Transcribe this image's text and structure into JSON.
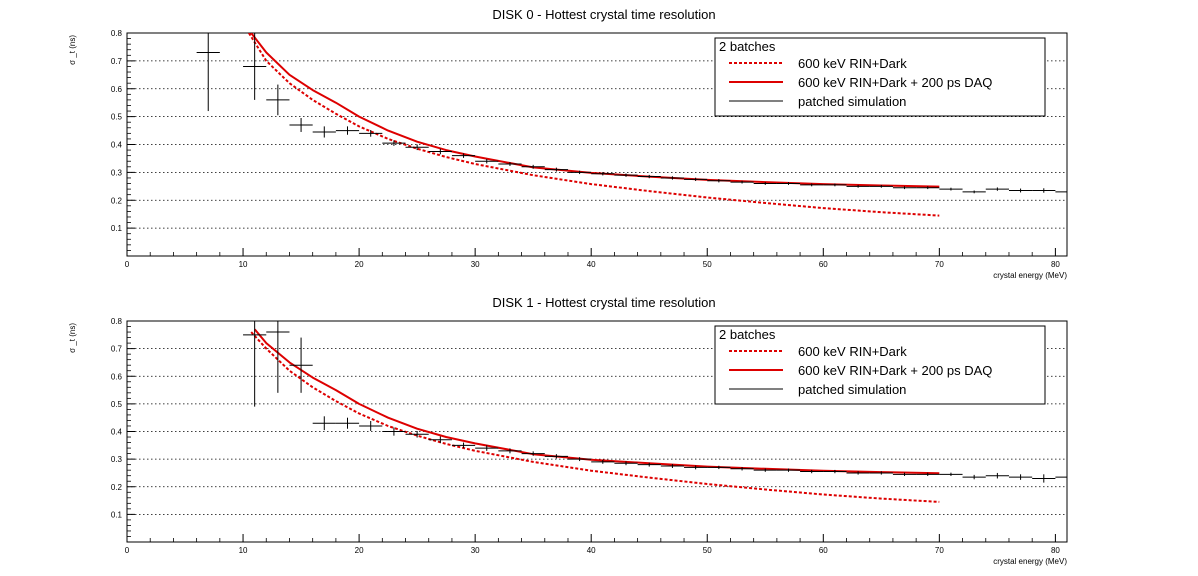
{
  "chart_data": [
    {
      "type": "scatter",
      "title": "DISK 0 - Hottest crystal time resolution",
      "xlabel": "crystal energy (MeV)",
      "ylabel": "σ _t (ns)",
      "xlim": [
        0,
        81
      ],
      "ylim": [
        0,
        0.8
      ],
      "x_ticks": [
        0,
        10,
        20,
        30,
        40,
        50,
        60,
        70,
        80
      ],
      "y_ticks": [
        0.1,
        0.2,
        0.3,
        0.4,
        0.5,
        0.6,
        0.7,
        0.8
      ],
      "grid": "horizontal-dotted",
      "legend_position": "top-right",
      "legend": {
        "header": "2 batches",
        "entries": [
          "600 keV RIN+Dark",
          "600 keV RIN+Dark + 200 ps DAQ",
          "patched simulation"
        ]
      },
      "series": [
        {
          "name": "600 keV RIN+Dark",
          "style": "dashed",
          "color": "#dd0000",
          "x": [
            10.5,
            12,
            14,
            16,
            18,
            20,
            22.5,
            25,
            27.5,
            30,
            35,
            40,
            45,
            50,
            55,
            60,
            65,
            70
          ],
          "y": [
            0.8,
            0.7,
            0.62,
            0.56,
            0.51,
            0.465,
            0.42,
            0.385,
            0.355,
            0.33,
            0.29,
            0.258,
            0.233,
            0.21,
            0.19,
            0.172,
            0.157,
            0.145
          ]
        },
        {
          "name": "600 keV RIN+Dark + 200 ps DAQ",
          "style": "solid",
          "color": "#dd0000",
          "x": [
            10.7,
            12,
            14,
            16,
            18,
            20,
            22.5,
            25,
            27.5,
            30,
            35,
            40,
            45,
            50,
            55,
            60,
            65,
            70
          ],
          "y": [
            0.8,
            0.73,
            0.65,
            0.595,
            0.55,
            0.5,
            0.45,
            0.41,
            0.38,
            0.357,
            0.318,
            0.298,
            0.285,
            0.273,
            0.265,
            0.258,
            0.253,
            0.249
          ]
        },
        {
          "name": "patched simulation",
          "style": "errorbars",
          "color": "#000000",
          "x": [
            7,
            11,
            13,
            15,
            17,
            19,
            21,
            23,
            25,
            27,
            29,
            31,
            33,
            35,
            37,
            39,
            41,
            43,
            45,
            47,
            49,
            51,
            53,
            55,
            57,
            59,
            61,
            63,
            65,
            67,
            69,
            71,
            73,
            75,
            77,
            79,
            81
          ],
          "y": [
            0.73,
            0.68,
            0.56,
            0.47,
            0.445,
            0.45,
            0.44,
            0.405,
            0.39,
            0.375,
            0.36,
            0.34,
            0.33,
            0.32,
            0.31,
            0.3,
            0.295,
            0.29,
            0.285,
            0.28,
            0.275,
            0.27,
            0.265,
            0.26,
            0.26,
            0.255,
            0.255,
            0.25,
            0.25,
            0.245,
            0.245,
            0.24,
            0.23,
            0.24,
            0.235,
            0.235,
            0.23
          ],
          "y_err": [
            0.21,
            0.12,
            0.055,
            0.025,
            0.02,
            0.015,
            0.012,
            0.01,
            0.01,
            0.01,
            0.008,
            0.008,
            0.007,
            0.007,
            0.007,
            0.006,
            0.006,
            0.006,
            0.006,
            0.006,
            0.006,
            0.006,
            0.005,
            0.005,
            0.005,
            0.005,
            0.005,
            0.005,
            0.005,
            0.005,
            0.005,
            0.005,
            0.005,
            0.006,
            0.007,
            0.008,
            0.01
          ],
          "x_err": 1
        }
      ]
    },
    {
      "type": "scatter",
      "title": "DISK 1 - Hottest crystal time resolution",
      "xlabel": "crystal energy (MeV)",
      "ylabel": "σ _t (ns)",
      "xlim": [
        0,
        81
      ],
      "ylim": [
        0,
        0.8
      ],
      "x_ticks": [
        0,
        10,
        20,
        30,
        40,
        50,
        60,
        70,
        80
      ],
      "y_ticks": [
        0.1,
        0.2,
        0.3,
        0.4,
        0.5,
        0.6,
        0.7,
        0.8
      ],
      "grid": "horizontal-dotted",
      "legend_position": "top-right",
      "legend": {
        "header": "2 batches",
        "entries": [
          "600 keV RIN+Dark",
          "600 keV RIN+Dark + 200 ps DAQ",
          "patched simulation"
        ]
      },
      "series": [
        {
          "name": "600 keV RIN+Dark",
          "style": "dashed",
          "color": "#dd0000",
          "x": [
            10.7,
            12,
            14,
            16,
            18,
            20,
            22.5,
            25,
            27.5,
            30,
            35,
            40,
            45,
            50,
            55,
            60,
            65,
            70
          ],
          "y": [
            0.76,
            0.7,
            0.62,
            0.56,
            0.51,
            0.465,
            0.42,
            0.385,
            0.355,
            0.33,
            0.29,
            0.258,
            0.233,
            0.21,
            0.19,
            0.172,
            0.157,
            0.145
          ]
        },
        {
          "name": "600 keV RIN+Dark + 200 ps DAQ",
          "style": "solid",
          "color": "#dd0000",
          "x": [
            11,
            12,
            14,
            16,
            18,
            20,
            22.5,
            25,
            27.5,
            30,
            35,
            40,
            45,
            50,
            55,
            60,
            65,
            70
          ],
          "y": [
            0.77,
            0.72,
            0.65,
            0.595,
            0.55,
            0.5,
            0.45,
            0.41,
            0.38,
            0.357,
            0.318,
            0.298,
            0.285,
            0.273,
            0.265,
            0.258,
            0.253,
            0.249
          ]
        },
        {
          "name": "patched simulation",
          "style": "errorbars",
          "color": "#000000",
          "x": [
            11,
            13,
            15,
            17,
            19,
            21,
            23,
            25,
            27,
            29,
            31,
            33,
            35,
            37,
            39,
            41,
            43,
            45,
            47,
            49,
            51,
            53,
            55,
            57,
            59,
            61,
            63,
            65,
            67,
            69,
            71,
            73,
            75,
            77,
            79,
            81
          ],
          "y": [
            0.75,
            0.76,
            0.64,
            0.43,
            0.43,
            0.42,
            0.4,
            0.39,
            0.37,
            0.35,
            0.34,
            0.33,
            0.32,
            0.31,
            0.3,
            0.29,
            0.285,
            0.28,
            0.275,
            0.27,
            0.27,
            0.265,
            0.26,
            0.26,
            0.255,
            0.255,
            0.25,
            0.25,
            0.245,
            0.245,
            0.245,
            0.235,
            0.24,
            0.235,
            0.23,
            0.235
          ],
          "y_err": [
            0.26,
            0.22,
            0.1,
            0.025,
            0.02,
            0.018,
            0.015,
            0.012,
            0.012,
            0.01,
            0.01,
            0.009,
            0.008,
            0.008,
            0.007,
            0.007,
            0.007,
            0.007,
            0.007,
            0.007,
            0.006,
            0.006,
            0.006,
            0.006,
            0.006,
            0.006,
            0.006,
            0.006,
            0.006,
            0.006,
            0.006,
            0.008,
            0.01,
            0.01,
            0.015,
            0.02
          ],
          "x_err": 1
        }
      ]
    }
  ]
}
